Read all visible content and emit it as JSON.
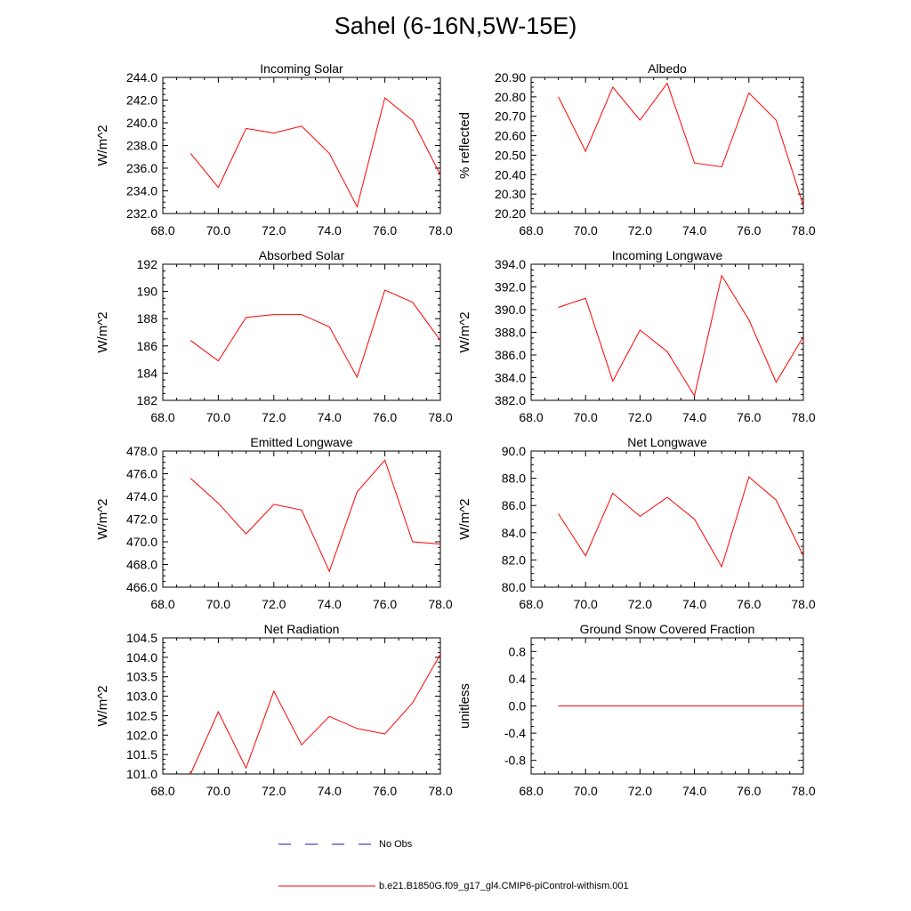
{
  "figure": {
    "title": "Sahel (6-16N,5W-15E)"
  },
  "legend": {
    "entries": [
      {
        "label": "No Obs",
        "color": "#1a1aa6",
        "style": "dashed"
      },
      {
        "label": "b.e21.B1850G.f09_g17_gl4.CMIP6-piControl-withism.001",
        "color": "#ff0000",
        "style": "solid"
      }
    ]
  },
  "chart_data": [
    {
      "type": "line",
      "title": "Incoming Solar",
      "xlabel": "",
      "ylabel": "W/m^2",
      "xlim": [
        68,
        78
      ],
      "ylim": [
        232,
        244
      ],
      "xticks": [
        68,
        70,
        72,
        74,
        76,
        78
      ],
      "xtick_labels": [
        "68.0",
        "70.0",
        "72.0",
        "74.0",
        "76.0",
        "78.0"
      ],
      "yticks": [
        232,
        234,
        236,
        238,
        240,
        242,
        244
      ],
      "ytick_labels": [
        "232.0",
        "234.0",
        "236.0",
        "238.0",
        "240.0",
        "242.0",
        "244.0"
      ],
      "series": [
        {
          "name": "b.e21.B1850G.f09_g17_gl4.CMIP6-piControl-withism.001",
          "color": "#ff0000",
          "x": [
            69,
            70,
            71,
            72,
            73,
            74,
            75,
            76,
            77,
            78
          ],
          "values": [
            237.3,
            234.3,
            239.5,
            239.1,
            239.7,
            237.3,
            232.6,
            242.2,
            240.2,
            235.4
          ]
        }
      ]
    },
    {
      "type": "line",
      "title": "Albedo",
      "xlabel": "",
      "ylabel": "% reflected",
      "xlim": [
        68,
        78
      ],
      "ylim": [
        20.2,
        20.9
      ],
      "xticks": [
        68,
        70,
        72,
        74,
        76,
        78
      ],
      "xtick_labels": [
        "68.0",
        "70.0",
        "72.0",
        "74.0",
        "76.0",
        "78.0"
      ],
      "yticks": [
        20.2,
        20.3,
        20.4,
        20.5,
        20.6,
        20.7,
        20.8,
        20.9
      ],
      "ytick_labels": [
        "20.20",
        "20.30",
        "20.40",
        "20.50",
        "20.60",
        "20.70",
        "20.80",
        "20.90"
      ],
      "series": [
        {
          "name": "b.e21.B1850G.f09_g17_gl4.CMIP6-piControl-withism.001",
          "color": "#ff0000",
          "x": [
            69,
            70,
            71,
            72,
            73,
            74,
            75,
            76,
            77,
            78
          ],
          "values": [
            20.8,
            20.52,
            20.85,
            20.68,
            20.87,
            20.46,
            20.44,
            20.82,
            20.68,
            20.24
          ]
        }
      ]
    },
    {
      "type": "line",
      "title": "Absorbed Solar",
      "xlabel": "",
      "ylabel": "W/m^2",
      "xlim": [
        68,
        78
      ],
      "ylim": [
        182,
        192
      ],
      "xticks": [
        68,
        70,
        72,
        74,
        76,
        78
      ],
      "xtick_labels": [
        "68.0",
        "70.0",
        "72.0",
        "74.0",
        "76.0",
        "78.0"
      ],
      "yticks": [
        182,
        184,
        186,
        188,
        190,
        192
      ],
      "ytick_labels": [
        "182",
        "184",
        "186",
        "188",
        "190",
        "192"
      ],
      "series": [
        {
          "name": "b.e21.B1850G.f09_g17_gl4.CMIP6-piControl-withism.001",
          "color": "#ff0000",
          "x": [
            69,
            70,
            71,
            72,
            73,
            74,
            75,
            76,
            77,
            78
          ],
          "values": [
            186.4,
            184.9,
            188.1,
            188.3,
            188.3,
            187.4,
            183.7,
            190.1,
            189.2,
            186.4
          ]
        }
      ]
    },
    {
      "type": "line",
      "title": "Incoming Longwave",
      "xlabel": "",
      "ylabel": "W/m^2",
      "xlim": [
        68,
        78
      ],
      "ylim": [
        382,
        394
      ],
      "xticks": [
        68,
        70,
        72,
        74,
        76,
        78
      ],
      "xtick_labels": [
        "68.0",
        "70.0",
        "72.0",
        "74.0",
        "76.0",
        "78.0"
      ],
      "yticks": [
        382,
        384,
        386,
        388,
        390,
        392,
        394
      ],
      "ytick_labels": [
        "382.0",
        "384.0",
        "386.0",
        "388.0",
        "390.0",
        "392.0",
        "394.0"
      ],
      "series": [
        {
          "name": "b.e21.B1850G.f09_g17_gl4.CMIP6-piControl-withism.001",
          "color": "#ff0000",
          "x": [
            69,
            70,
            71,
            72,
            73,
            74,
            75,
            76,
            77,
            78
          ],
          "values": [
            390.2,
            391.0,
            383.7,
            388.2,
            386.3,
            382.4,
            393.0,
            389.1,
            383.6,
            387.6
          ]
        }
      ]
    },
    {
      "type": "line",
      "title": "Emitted Longwave",
      "xlabel": "",
      "ylabel": "W/m^2",
      "xlim": [
        68,
        78
      ],
      "ylim": [
        466,
        478
      ],
      "xticks": [
        68,
        70,
        72,
        74,
        76,
        78
      ],
      "xtick_labels": [
        "68.0",
        "70.0",
        "72.0",
        "74.0",
        "76.0",
        "78.0"
      ],
      "yticks": [
        466,
        468,
        470,
        472,
        474,
        476,
        478
      ],
      "ytick_labels": [
        "466.0",
        "468.0",
        "470.0",
        "472.0",
        "474.0",
        "476.0",
        "478.0"
      ],
      "series": [
        {
          "name": "b.e21.B1850G.f09_g17_gl4.CMIP6-piControl-withism.001",
          "color": "#ff0000",
          "x": [
            69,
            70,
            71,
            72,
            73,
            74,
            75,
            76,
            77,
            78
          ],
          "values": [
            475.6,
            473.4,
            470.7,
            473.3,
            472.8,
            467.4,
            474.4,
            477.2,
            470.0,
            469.8
          ]
        }
      ]
    },
    {
      "type": "line",
      "title": "Net Longwave",
      "xlabel": "",
      "ylabel": "W/m^2",
      "xlim": [
        68,
        78
      ],
      "ylim": [
        80,
        90
      ],
      "xticks": [
        68,
        70,
        72,
        74,
        76,
        78
      ],
      "xtick_labels": [
        "68.0",
        "70.0",
        "72.0",
        "74.0",
        "76.0",
        "78.0"
      ],
      "yticks": [
        80,
        82,
        84,
        86,
        88,
        90
      ],
      "ytick_labels": [
        "80.0",
        "82.0",
        "84.0",
        "86.0",
        "88.0",
        "90.0"
      ],
      "series": [
        {
          "name": "b.e21.B1850G.f09_g17_gl4.CMIP6-piControl-withism.001",
          "color": "#ff0000",
          "x": [
            69,
            70,
            71,
            72,
            73,
            74,
            75,
            76,
            77,
            78
          ],
          "values": [
            85.4,
            82.3,
            86.9,
            85.2,
            86.6,
            85.0,
            81.5,
            88.1,
            86.4,
            82.3
          ]
        }
      ]
    },
    {
      "type": "line",
      "title": "Net Radiation",
      "xlabel": "",
      "ylabel": "W/m^2",
      "xlim": [
        68,
        78
      ],
      "ylim": [
        101,
        104.5
      ],
      "xticks": [
        68,
        70,
        72,
        74,
        76,
        78
      ],
      "xtick_labels": [
        "68.0",
        "70.0",
        "72.0",
        "74.0",
        "76.0",
        "78.0"
      ],
      "yticks": [
        101,
        101.5,
        102,
        102.5,
        103,
        103.5,
        104,
        104.5
      ],
      "ytick_labels": [
        "101.0",
        "101.5",
        "102.0",
        "102.5",
        "103.0",
        "103.5",
        "104.0",
        "104.5"
      ],
      "series": [
        {
          "name": "b.e21.B1850G.f09_g17_gl4.CMIP6-piControl-withism.001",
          "color": "#ff0000",
          "x": [
            69,
            70,
            71,
            72,
            73,
            74,
            75,
            76,
            77,
            78
          ],
          "values": [
            101.0,
            102.6,
            101.15,
            103.13,
            101.75,
            102.48,
            102.17,
            102.03,
            102.83,
            104.08
          ]
        }
      ]
    },
    {
      "type": "line",
      "title": "Ground Snow Covered Fraction",
      "xlabel": "",
      "ylabel": "unitless",
      "xlim": [
        68,
        78
      ],
      "ylim": [
        -1,
        1
      ],
      "xticks": [
        68,
        70,
        72,
        74,
        76,
        78
      ],
      "xtick_labels": [
        "68.0",
        "70.0",
        "72.0",
        "74.0",
        "76.0",
        "78.0"
      ],
      "yticks": [
        -0.8,
        -0.4,
        0,
        0.4,
        0.8
      ],
      "ytick_labels": [
        "-0.8",
        "-0.4",
        "0.0",
        "0.4",
        "0.8"
      ],
      "series": [
        {
          "name": "b.e21.B1850G.f09_g17_gl4.CMIP6-piControl-withism.001",
          "color": "#ff0000",
          "x": [
            69,
            70,
            71,
            72,
            73,
            74,
            75,
            76,
            77,
            78
          ],
          "values": [
            0,
            0,
            0,
            0,
            0,
            0,
            0,
            0,
            0,
            0
          ]
        }
      ]
    }
  ]
}
